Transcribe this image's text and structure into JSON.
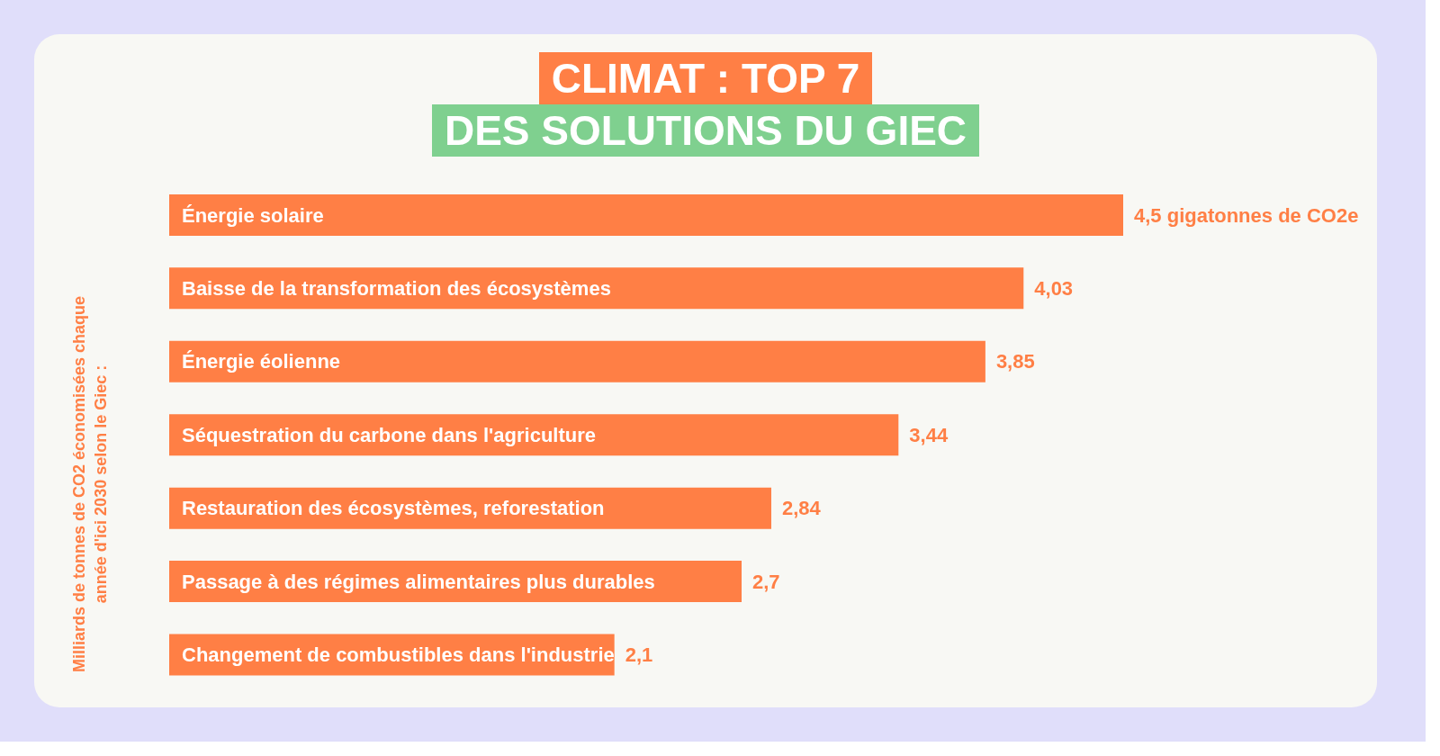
{
  "chart_data": {
    "type": "bar",
    "orientation": "horizontal",
    "title": "CLIMAT : TOP 7",
    "subtitle": "DES SOLUTIONS DU GIEC",
    "ylabel": "Milliards de tonnes de CO2 économisées chaque année d'ici 2030 selon le Giec :",
    "categories": [
      "Énergie solaire",
      "Baisse de la transformation des écosystèmes",
      "Énergie éolienne",
      "Séquestration du carbone dans l'agriculture",
      "Restauration des écosystèmes, reforestation",
      "Passage à des régimes alimentaires plus durables",
      "Changement de combustibles dans l'industrie"
    ],
    "values": [
      4.5,
      4.03,
      3.85,
      3.44,
      2.84,
      2.7,
      2.1
    ],
    "value_labels": [
      "4,5 gigatonnes de CO2e",
      "4,03",
      "3,85",
      "3,44",
      "2,84",
      "2,7",
      "2,1"
    ],
    "color": "#ff7f45",
    "grid": false,
    "legend": false
  }
}
